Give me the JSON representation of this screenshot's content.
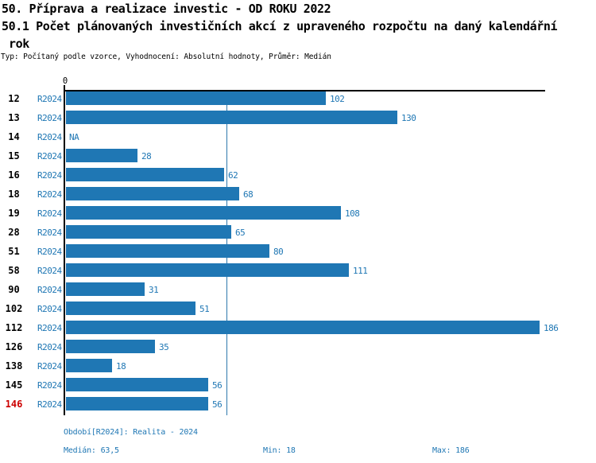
{
  "title": {
    "line1": "50. Příprava a realizace investic - OD ROKU 2022",
    "line2": "50.1 Počet plánovaných investičních akcí z upraveného rozpočtu na daný kalendářní",
    "line3": "rok",
    "subtitle": "Typ: Počítaný podle vzorce, Vyhodnocení: Absolutní hodnoty, Průměr: Medián"
  },
  "chart_data": {
    "type": "bar",
    "orientation": "horizontal",
    "axis_zero_label": "0",
    "xlim": [
      0,
      188
    ],
    "median": 63.5,
    "period": "R2024",
    "rows": [
      {
        "id": "12",
        "period": "R2024",
        "value": 102,
        "label": "102"
      },
      {
        "id": "13",
        "period": "R2024",
        "value": 130,
        "label": "130"
      },
      {
        "id": "14",
        "period": "R2024",
        "value": null,
        "label": "NA"
      },
      {
        "id": "15",
        "period": "R2024",
        "value": 28,
        "label": "28"
      },
      {
        "id": "16",
        "period": "R2024",
        "value": 62,
        "label": "62"
      },
      {
        "id": "18",
        "period": "R2024",
        "value": 68,
        "label": "68"
      },
      {
        "id": "19",
        "period": "R2024",
        "value": 108,
        "label": "108"
      },
      {
        "id": "28",
        "period": "R2024",
        "value": 65,
        "label": "65"
      },
      {
        "id": "51",
        "period": "R2024",
        "value": 80,
        "label": "80"
      },
      {
        "id": "58",
        "period": "R2024",
        "value": 111,
        "label": "111"
      },
      {
        "id": "90",
        "period": "R2024",
        "value": 31,
        "label": "31"
      },
      {
        "id": "102",
        "period": "R2024",
        "value": 51,
        "label": "51"
      },
      {
        "id": "112",
        "period": "R2024",
        "value": 186,
        "label": "186"
      },
      {
        "id": "126",
        "period": "R2024",
        "value": 35,
        "label": "35"
      },
      {
        "id": "138",
        "period": "R2024",
        "value": 18,
        "label": "18"
      },
      {
        "id": "145",
        "period": "R2024",
        "value": 56,
        "label": "56"
      },
      {
        "id": "146",
        "period": "R2024",
        "value": 56,
        "label": "56",
        "highlight": true
      }
    ],
    "colors": {
      "bar": "#1f77b4",
      "median_line": "#2e78ad",
      "blue_text": "#1f77b4",
      "highlight_text": "#cc0000",
      "axis": "#000000"
    }
  },
  "footer": {
    "period_info": "Období[R2024]: Realita - 2024",
    "median": "Medián: 63,5",
    "min": "Min: 18",
    "max": "Max: 186"
  }
}
